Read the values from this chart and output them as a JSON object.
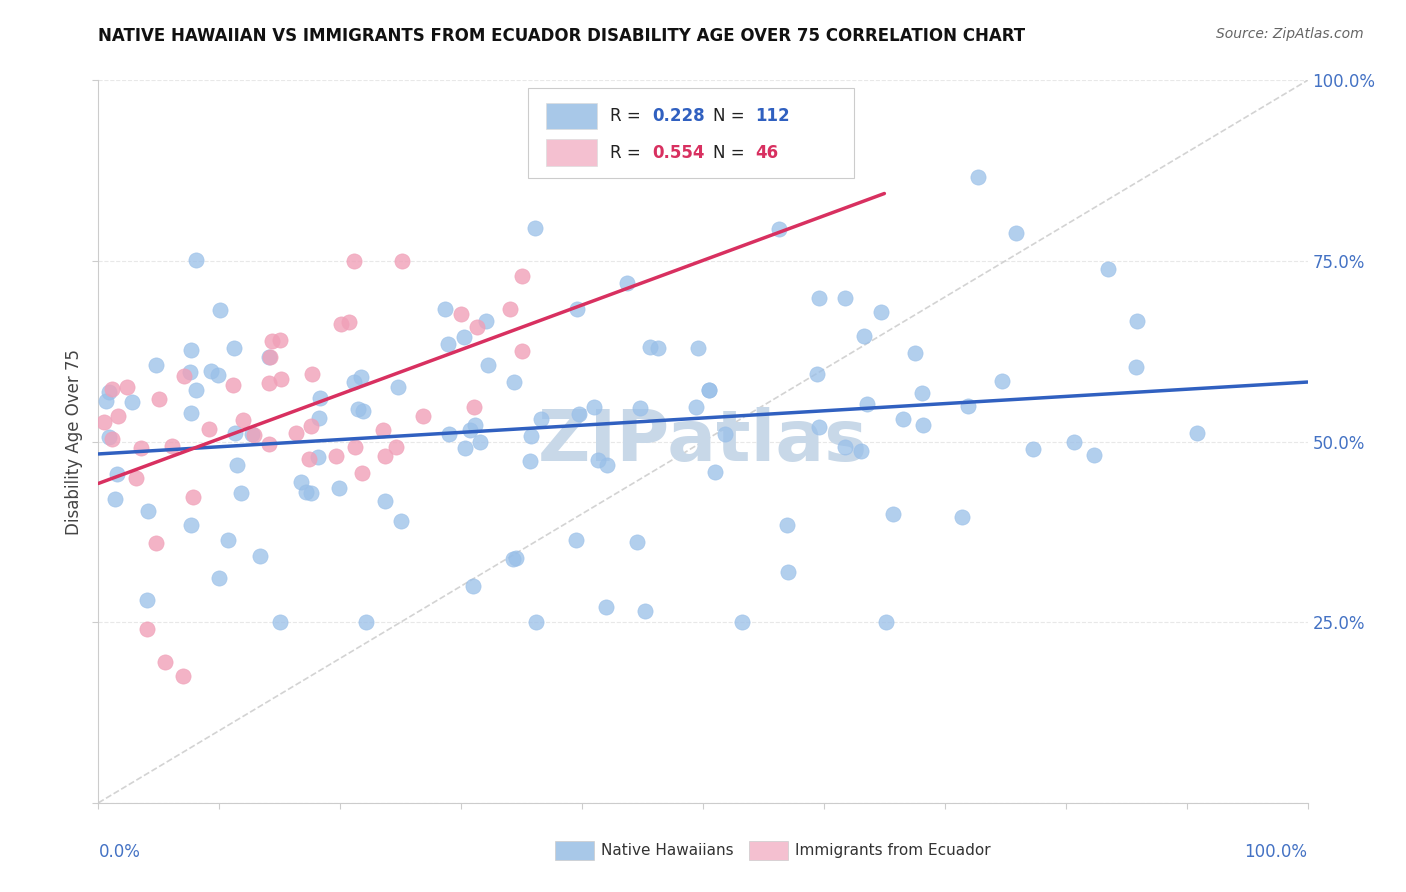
{
  "title": "NATIVE HAWAIIAN VS IMMIGRANTS FROM ECUADOR DISABILITY AGE OVER 75 CORRELATION CHART",
  "source": "Source: ZipAtlas.com",
  "ylabel": "Disability Age Over 75",
  "watermark": "ZIPatlas",
  "legend_entries": [
    {
      "r_val": "0.228",
      "n_val": "112"
    },
    {
      "r_val": "0.554",
      "n_val": "46"
    }
  ],
  "legend_bottom": [
    {
      "label": "Native Hawaiians"
    },
    {
      "label": "Immigrants from Ecuador"
    }
  ],
  "bg_color": "#ffffff",
  "grid_color": "#e8e8e8",
  "blue_color": "#99bfe8",
  "pink_color": "#f0a0b8",
  "blue_line_color": "#3060c0",
  "pink_line_color": "#d83060",
  "ref_line_color": "#c8c8c8",
  "right_axis_color": "#4472c4",
  "watermark_color": "#c8d8e8",
  "blue_legend_color": "#a8c8e8",
  "pink_legend_color": "#f4c0d0"
}
